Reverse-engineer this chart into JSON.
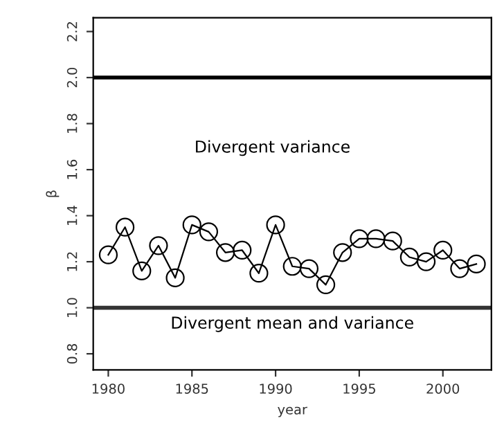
{
  "chart_data": {
    "type": "line",
    "xlabel": "year",
    "ylabel": "β",
    "x": [
      1980,
      1981,
      1982,
      1983,
      1984,
      1985,
      1986,
      1987,
      1988,
      1989,
      1990,
      1991,
      1992,
      1993,
      1994,
      1995,
      1996,
      1997,
      1998,
      1999,
      2000,
      2001,
      2002
    ],
    "series": [
      {
        "color": "#000000",
        "values": [
          1.23,
          1.35,
          1.16,
          1.27,
          1.13,
          1.36,
          1.33,
          1.24,
          1.25,
          1.15,
          1.36,
          1.18,
          1.17,
          1.1,
          1.24,
          1.3,
          1.3,
          1.29,
          1.22,
          1.2,
          1.25,
          1.17,
          1.19
        ]
      }
    ],
    "marker": "circle",
    "line_style": "solid",
    "grid": false,
    "legend": false,
    "xlim": [
      1979.1,
      2002.9
    ],
    "ylim": [
      0.73,
      2.26
    ],
    "xticks": [
      1980,
      1985,
      1990,
      1995,
      2000
    ],
    "yticks": [
      0.8,
      {
        "value": 1.0,
        "label": "1.0"
      },
      1.2,
      1.4,
      1.6,
      1.8,
      {
        "value": 2.0,
        "label": "2.0"
      },
      2.2
    ],
    "ref_lines": [
      {
        "axis": "y",
        "value": 2.0,
        "color": "#000000"
      },
      {
        "axis": "y",
        "value": 1.0,
        "color": "#333333"
      }
    ],
    "annotations": [
      "Divergent variance",
      "Divergent mean and variance"
    ]
  }
}
